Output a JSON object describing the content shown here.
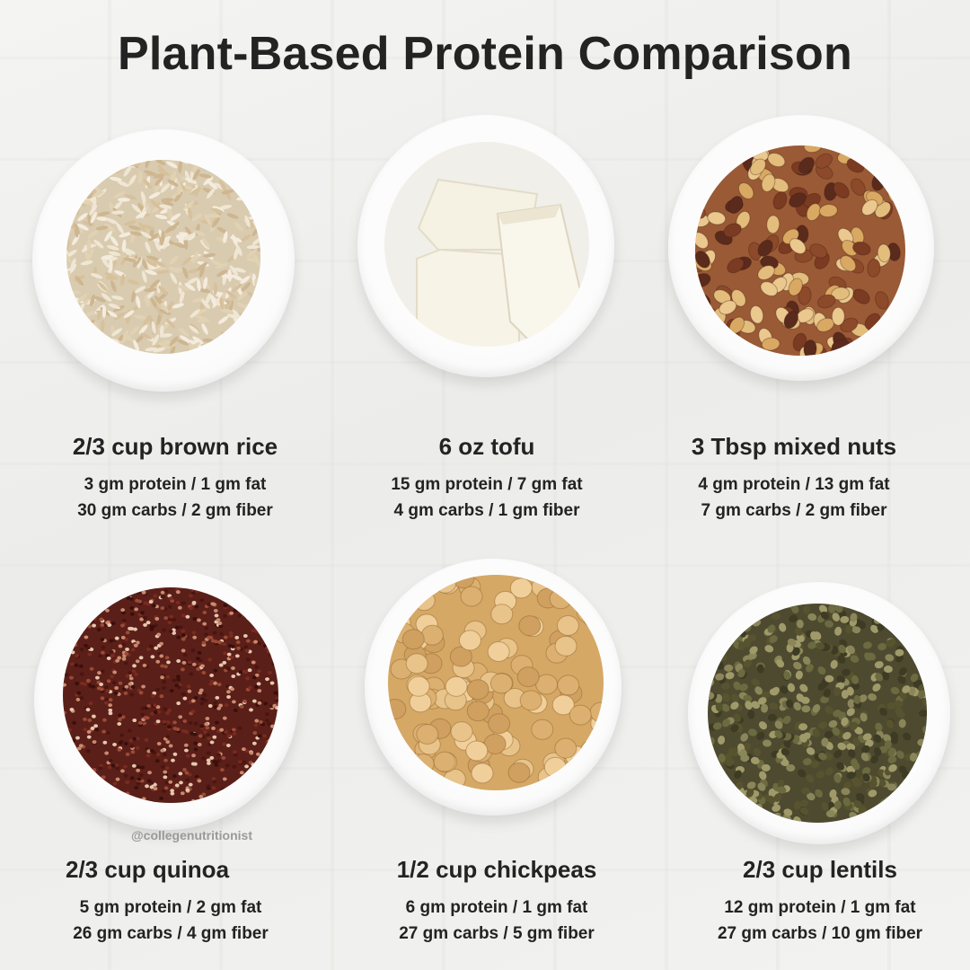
{
  "title": "Plant-Based Protein Comparison",
  "credit": "@collegenutritionist",
  "items": [
    {
      "name": "2/3 cup brown rice",
      "line1": "3 gm protein / 1 gm fat",
      "line2": "30 gm carbs / 2 gm fiber"
    },
    {
      "name": "6 oz tofu",
      "line1": "15 gm protein / 7 gm fat",
      "line2": "4 gm carbs / 1 gm fiber"
    },
    {
      "name": "3 Tbsp mixed nuts",
      "line1": "4 gm protein / 13 gm fat",
      "line2": "7 gm carbs / 2 gm fiber"
    },
    {
      "name": "2/3 cup quinoa",
      "line1": "5 gm protein / 2 gm fat",
      "line2": "26 gm carbs / 4 gm fiber"
    },
    {
      "name": "1/2 cup chickpeas",
      "line1": "6 gm protein / 1 gm fat",
      "line2": "27 gm carbs / 5 gm fiber"
    },
    {
      "name": "2/3 cup lentils",
      "line1": "12 gm protein / 1 gm fat",
      "line2": "27 gm carbs / 10 gm fiber"
    }
  ]
}
